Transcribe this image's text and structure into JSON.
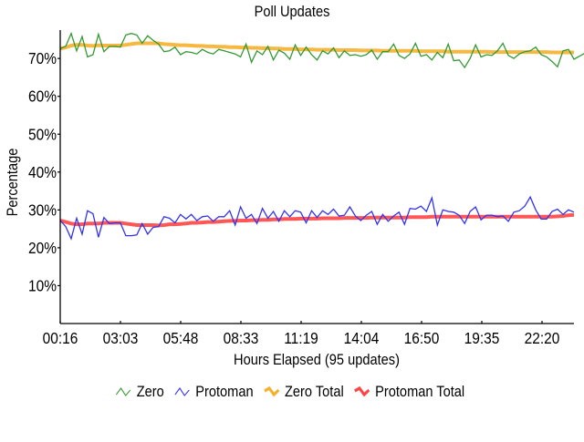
{
  "chart_data": {
    "type": "line",
    "title": "Poll Updates",
    "xlabel": "Hours Elapsed (95 updates)",
    "ylabel": "Percentage",
    "ylim": [
      0,
      77
    ],
    "yticks": [
      "10%",
      "20%",
      "30%",
      "40%",
      "50%",
      "60%",
      "70%"
    ],
    "ytick_values": [
      10,
      20,
      30,
      40,
      50,
      60,
      70
    ],
    "xticks": [
      "00:16",
      "03:03",
      "05:48",
      "08:33",
      "11:19",
      "14:04",
      "16:50",
      "19:35",
      "22:20"
    ],
    "grid": false,
    "legend_position": "bottom",
    "num_points": 95,
    "series": [
      {
        "name": "Zero",
        "color": "#339933",
        "style": "thin-line",
        "values": [
          72.6,
          73.2,
          76.6,
          72.0,
          75.8,
          70.4,
          71.0,
          76.4,
          71.8,
          73.2,
          73.2,
          73.0,
          76.2,
          76.6,
          76.2,
          74.0,
          76.0,
          74.8,
          73.8,
          71.8,
          72.0,
          73.0,
          71.0,
          71.8,
          71.6,
          71.2,
          72.4,
          71.6,
          71.2,
          72.4,
          72.0,
          71.6,
          71.2,
          70.4,
          73.8,
          69.0,
          72.0,
          71.0,
          73.2,
          69.6,
          72.2,
          71.4,
          69.8,
          73.6,
          70.8,
          73.0,
          71.0,
          69.6,
          72.0,
          71.2,
          72.8,
          70.2,
          72.0,
          70.8,
          71.0,
          70.6,
          71.0,
          72.2,
          69.8,
          71.8,
          71.8,
          73.8,
          70.8,
          70.0,
          71.2,
          74.0,
          70.6,
          71.0,
          69.6,
          71.6,
          70.2,
          73.8,
          69.4,
          69.6,
          67.6,
          70.0,
          73.6,
          70.4,
          71.0,
          70.8,
          72.0,
          74.0,
          70.8,
          70.0,
          71.2,
          71.8,
          72.0,
          73.0,
          71.0,
          70.4,
          69.2,
          67.8,
          72.0,
          72.4,
          69.8,
          70.6,
          71.4,
          71.0,
          70.0,
          71.0
        ]
      },
      {
        "name": "Protoman",
        "color": "#3333ee",
        "style": "thin-line",
        "values": [
          27.2,
          25.6,
          22.4,
          27.8,
          23.6,
          29.8,
          29.0,
          22.8,
          28.0,
          26.4,
          26.6,
          26.6,
          23.2,
          23.2,
          23.4,
          26.4,
          23.6,
          25.4,
          25.6,
          28.2,
          27.8,
          26.6,
          28.8,
          27.6,
          28.8,
          27.2,
          28.2,
          28.4,
          27.0,
          28.2,
          28.2,
          29.8,
          26.0,
          30.8,
          27.8,
          28.8,
          26.4,
          30.4,
          27.8,
          29.6,
          27.0,
          29.8,
          28.2,
          29.8,
          29.4,
          26.6,
          29.8,
          28.0,
          29.8,
          28.8,
          30.2,
          28.4,
          28.6,
          30.8,
          28.4,
          27.2,
          28.6,
          29.6,
          26.2,
          28.8,
          27.0,
          28.4,
          29.4,
          26.2,
          30.4,
          30.2,
          31.0,
          29.6,
          33.2,
          26.0,
          30.0,
          29.6,
          29.4,
          28.6,
          26.4,
          29.6,
          30.8,
          27.4,
          28.6,
          28.6,
          28.2,
          28.4,
          27.0,
          29.4,
          29.8,
          31.0,
          33.4,
          30.0,
          27.6,
          27.6,
          29.6,
          30.2,
          28.8,
          30.0,
          29.4
        ]
      },
      {
        "name": "Zero Total",
        "color": "#f5b02c",
        "style": "thick-line",
        "values": [
          72.6,
          72.9,
          73.4,
          73.6,
          73.6,
          73.4,
          73.3,
          73.5,
          73.4,
          73.4,
          73.4,
          73.4,
          73.6,
          73.8,
          74.0,
          74.0,
          74.0,
          74.0,
          74.0,
          73.8,
          73.7,
          73.6,
          73.5,
          73.5,
          73.4,
          73.3,
          73.3,
          73.2,
          73.2,
          73.1,
          73.1,
          73.0,
          73.0,
          72.9,
          72.9,
          72.8,
          72.8,
          72.7,
          72.7,
          72.6,
          72.6,
          72.5,
          72.5,
          72.5,
          72.4,
          72.4,
          72.4,
          72.3,
          72.3,
          72.3,
          72.3,
          72.2,
          72.2,
          72.2,
          72.2,
          72.1,
          72.1,
          72.1,
          72.1,
          72.0,
          72.0,
          72.0,
          72.0,
          72.0,
          72.0,
          72.0,
          71.9,
          71.9,
          71.9,
          71.9,
          71.9,
          71.8,
          71.8,
          71.8,
          71.8,
          71.8,
          71.8,
          71.8,
          71.8,
          71.7,
          71.7,
          71.7,
          71.7,
          71.7,
          71.7,
          71.7,
          71.7,
          71.7,
          71.7,
          71.7,
          71.6,
          71.6,
          71.6,
          71.6,
          71.6
        ]
      },
      {
        "name": "Protoman Total",
        "color": "#ff4444",
        "style": "thick-line",
        "values": [
          27.2,
          26.8,
          26.4,
          26.2,
          26.2,
          26.4,
          26.4,
          26.4,
          26.6,
          26.6,
          26.6,
          26.6,
          26.4,
          26.2,
          26.0,
          26.0,
          26.0,
          26.0,
          25.9,
          26.0,
          26.2,
          26.2,
          26.3,
          26.4,
          26.6,
          26.6,
          26.7,
          26.8,
          26.8,
          26.9,
          27.0,
          27.1,
          27.1,
          27.2,
          27.2,
          27.3,
          27.3,
          27.4,
          27.4,
          27.5,
          27.5,
          27.6,
          27.6,
          27.6,
          27.7,
          27.7,
          27.7,
          27.7,
          27.8,
          27.8,
          27.8,
          27.8,
          27.9,
          27.9,
          27.9,
          27.9,
          27.9,
          28.0,
          28.0,
          28.0,
          28.0,
          28.0,
          28.0,
          28.0,
          28.1,
          28.1,
          28.1,
          28.1,
          28.2,
          28.2,
          28.2,
          28.2,
          28.2,
          28.2,
          28.2,
          28.2,
          28.2,
          28.2,
          28.2,
          28.2,
          28.2,
          28.2,
          28.2,
          28.2,
          28.2,
          28.2,
          28.2,
          28.2,
          28.2,
          28.2,
          28.2,
          28.3,
          28.4,
          28.6,
          28.7
        ]
      }
    ]
  },
  "legend": {
    "items": [
      {
        "label": "Zero",
        "color": "#339933",
        "icon": "thin-zigzag-icon"
      },
      {
        "label": "Protoman",
        "color": "#3333ee",
        "icon": "thin-zigzag-icon"
      },
      {
        "label": "Zero Total",
        "color": "#f5b02c",
        "icon": "thick-zigzag-icon"
      },
      {
        "label": "Protoman Total",
        "color": "#ff4444",
        "icon": "thick-zigzag-icon"
      }
    ]
  }
}
